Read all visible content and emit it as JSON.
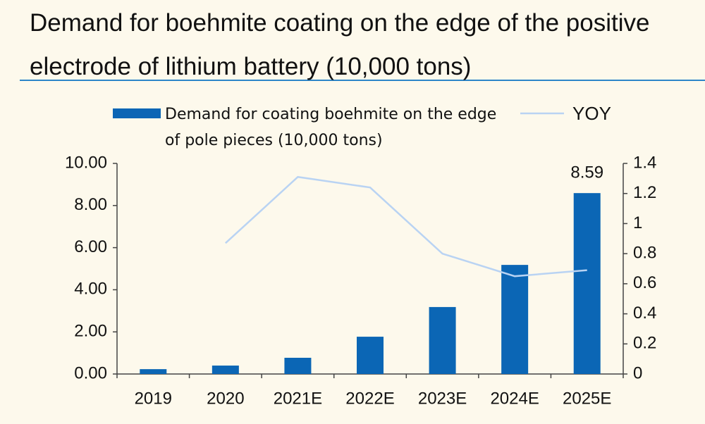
{
  "chart_data": {
    "type": "bar",
    "title": "Demand for boehmite coating on the edge of the positive electrode of lithium battery (10,000 tons)",
    "categories": [
      "2019",
      "2020",
      "2021E",
      "2022E",
      "2023E",
      "2024E",
      "2025E"
    ],
    "series": [
      {
        "name": "Demand for coating boehmite on the edge of pole pieces (10,000 tons)",
        "type": "bar",
        "color": "#0b66b5",
        "values": [
          0.23,
          0.4,
          0.77,
          1.77,
          3.18,
          5.18,
          8.59
        ]
      },
      {
        "name": "YOY",
        "type": "line",
        "axis": "y2",
        "color": "#b9d3f3",
        "values": [
          null,
          0.87,
          1.31,
          1.24,
          0.8,
          0.65,
          0.69
        ]
      }
    ],
    "data_labels": [
      [
        6,
        0
      ]
    ],
    "ylim": [
      0,
      10
    ],
    "yticks": [
      {
        "value": 0,
        "label": "0.00"
      },
      {
        "value": 2,
        "label": "2.00"
      },
      {
        "value": 4,
        "label": "4.00"
      },
      {
        "value": 6,
        "label": "6.00"
      },
      {
        "value": 8,
        "label": "8.00"
      },
      {
        "value": 10,
        "label": "10.00"
      }
    ],
    "y2lim": [
      0,
      1.4
    ],
    "y2ticks": [
      0,
      0.2,
      0.4,
      0.6,
      0.8,
      1,
      1.2,
      1.4
    ],
    "legend": "top",
    "grid": false
  }
}
